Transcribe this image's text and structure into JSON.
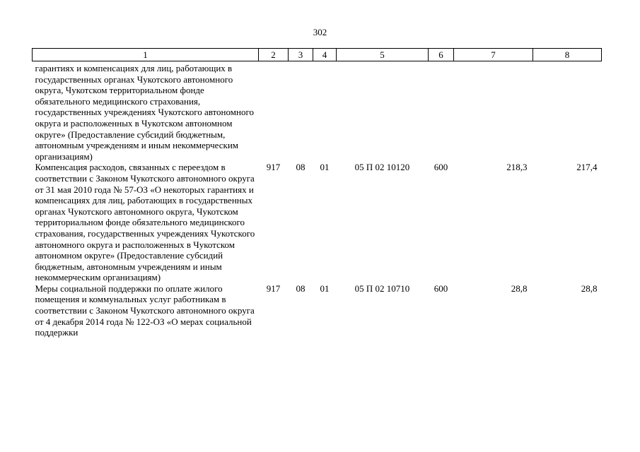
{
  "page_number": "302",
  "columns": [
    "1",
    "2",
    "3",
    "4",
    "5",
    "6",
    "7",
    "8"
  ],
  "rows": [
    {
      "description": "гарантиях и компенсациях для лиц, работающих в государственных органах Чукотского автономного округа, Чукотском территориальном фонде обязательного медицинского страхования, государственных учреждениях Чукотского автономного округа и расположенных в Чукотском автономном округе» (Предоставление субсидий бюджетным, автономным учреждениям и иным некоммерческим организациям)",
      "col2": "",
      "col3": "",
      "col4": "",
      "col5": "",
      "col6": "",
      "col7": "",
      "col8": ""
    },
    {
      "description": "Компенсация расходов, связанных с переездом в соответствии с Законом Чукотского автономного округа от 31 мая 2010 года № 57-ОЗ «О некоторых гарантиях и компенсациях для лиц, работающих в государственных органах Чукотского автономного округа, Чукотском территориальном фонде обязательного медицинского страхования, государственных учреждениях Чукотского автономного округа и расположенных в Чукотском автономном округе» (Предоставление субсидий бюджетным, автономным учреждениям и иным некоммерческим организациям)",
      "col2": "917",
      "col3": "08",
      "col4": "01",
      "col5": "05 П 02 10120",
      "col6": "600",
      "col7": "218,3",
      "col8": "217,4"
    },
    {
      "description": "Меры социальной поддержки по оплате жилого помещения и коммунальных услуг работникам в соответствии с Законом Чукотского автономного округа от 4 декабря 2014 года № 122-ОЗ «О мерах социальной поддержки",
      "col2": "917",
      "col3": "08",
      "col4": "01",
      "col5": "05 П 02 10710",
      "col6": "600",
      "col7": "28,8",
      "col8": "28,8"
    }
  ]
}
